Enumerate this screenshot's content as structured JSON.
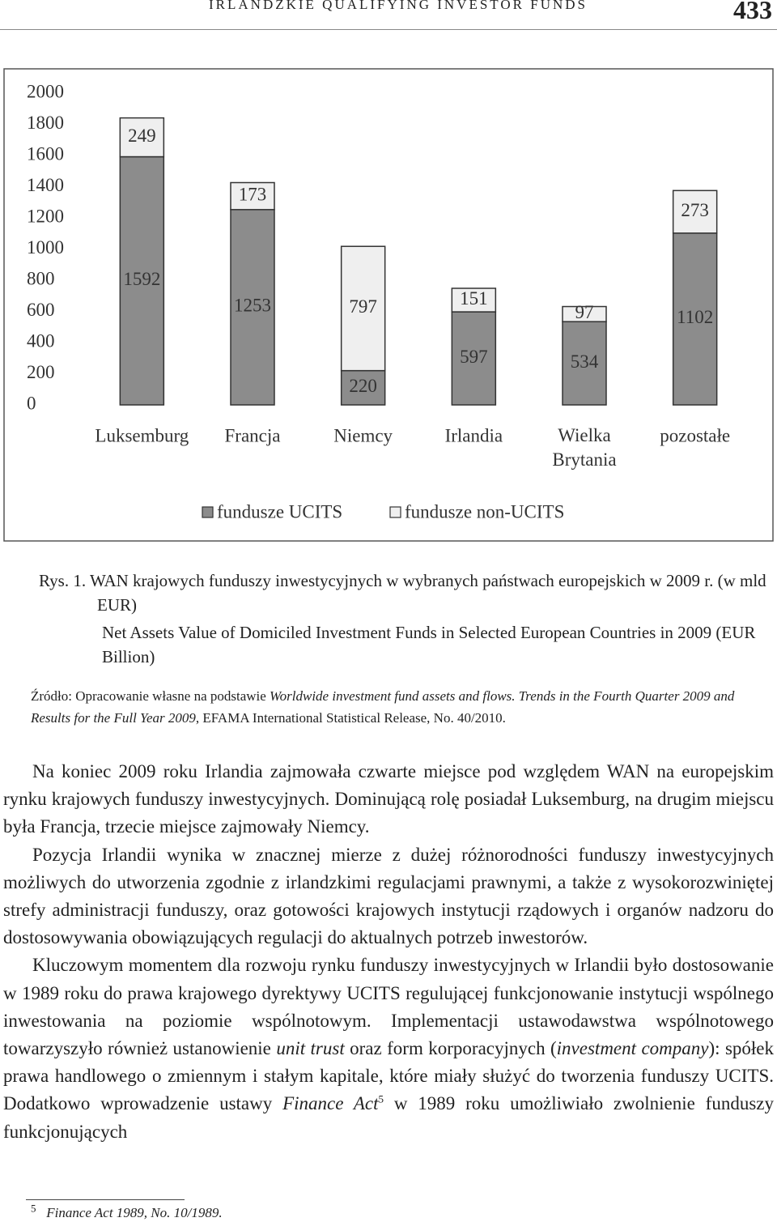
{
  "header": {
    "title": "IRLANDZKIE QUALIFYING INVESTOR FUNDS",
    "page": "433"
  },
  "chart_data": {
    "type": "bar",
    "stacked": true,
    "categories": [
      "Luksemburg",
      "Francja",
      "Niemcy",
      "Irlandia",
      "Wielka Brytania",
      "pozostałe"
    ],
    "series": [
      {
        "name": "fundusze UCITS",
        "color": "#8c8c8c",
        "values": [
          1592,
          1253,
          220,
          597,
          534,
          1102
        ]
      },
      {
        "name": "fundusze non-UCITS",
        "color": "#efefef",
        "values": [
          249,
          173,
          797,
          151,
          97,
          273
        ]
      }
    ],
    "ylim": [
      0,
      2000
    ],
    "yticks": [
      0,
      200,
      400,
      600,
      800,
      1000,
      1200,
      1400,
      1600,
      1800,
      2000
    ],
    "grid": false,
    "legend": "bottom"
  },
  "caption": {
    "polish": "Rys. 1. WAN krajowych funduszy inwestycyjnych w wybranych państwach europejskich w 2009 r. (w mld EUR)",
    "english": "Net Assets Value of Domiciled Investment Funds in Selected European Countries in 2009 (EUR Billion)"
  },
  "source": [
    "Źródło: Opracowanie własne na podstawie ",
    "Worldwide investment fund assets and flows. Trends in the Fourth Quarter 2009 and Results for the Full Year 2009",
    ", EFAMA International Statistical Release, No. 40/2010."
  ],
  "body": {
    "paragraphs": [
      "Na koniec 2009 roku Irlandia zajmowała czwarte miejsce pod względem WAN na europejskim rynku krajowych funduszy inwestycyjnych. Dominującą rolę posiadał Luksemburg, na drugim miejscu była Francja, trzecie miejsce zajmowały Niemcy.",
      "Pozycja Irlandii wynika w znacznej mierze z dużej różnorodności funduszy inwestycyjnych możliwych do utworzenia zgodnie z irlandzkimi regulacjami prawnymi, a także z wysokorozwiniętej strefy administracji funduszy, oraz gotowości krajowych instytucji rządowych i organów nadzoru do dostosowywania obowiązujących regulacji do aktualnych potrzeb inwestorów.",
      [
        "Kluczowym momentem dla rozwoju rynku funduszy inwestycyjnych w Irlandii było dostosowanie w 1989 roku do prawa krajowego dyrektywy UCITS regulującej funkcjonowanie instytucji wspólnego inwestowania na poziomie wspólnotowym. Implementacji ustawodawstwa wspólnotowego towarzyszyło również ustanowienie ",
        "unit trust",
        " oraz form korporacyjnych (",
        "investment company",
        "): spółek prawa handlowego o zmiennym i stałym kapitale, które miały służyć do tworzenia funduszy UCITS. Dodatkowo wprowadzenie ustawy ",
        "Finance Act",
        "5",
        " w 1989 roku umożliwiało zwolnienie funduszy funkcjonujących"
      ]
    ]
  },
  "footnote": {
    "number": "5",
    "text": "Finance Act 1989, No. 10/1989."
  }
}
